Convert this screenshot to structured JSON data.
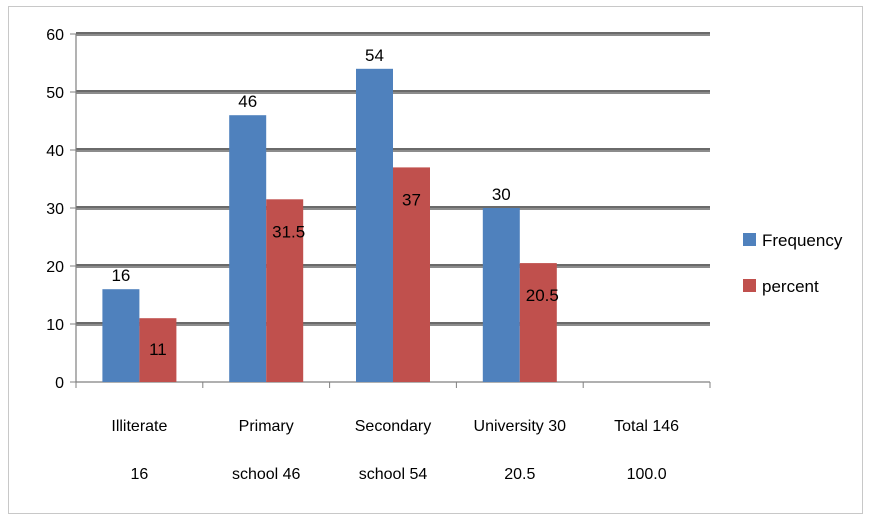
{
  "chart_data": {
    "type": "bar",
    "categories": [
      [
        "Illiterate",
        "16"
      ],
      [
        "Primary",
        "school 46"
      ],
      [
        "Secondary",
        "school 54"
      ],
      [
        "University 30",
        "20.5"
      ],
      [
        "Total 146",
        "100.0"
      ]
    ],
    "series": [
      {
        "name": "Frequency",
        "color": "#4f81bd",
        "values": [
          16,
          46,
          54,
          30,
          null
        ]
      },
      {
        "name": "percent",
        "color": "#c0504d",
        "values": [
          11,
          31.5,
          37,
          20.5,
          null
        ]
      }
    ],
    "data_labels": {
      "Frequency": [
        "16",
        "46",
        "54",
        "30",
        ""
      ],
      "percent": [
        "11",
        "31.5",
        "37",
        "20.5",
        ""
      ]
    },
    "ylim": [
      0,
      60
    ],
    "yticks": [
      0,
      10,
      20,
      30,
      40,
      50,
      60
    ],
    "grid": true,
    "legend_position": "right"
  }
}
